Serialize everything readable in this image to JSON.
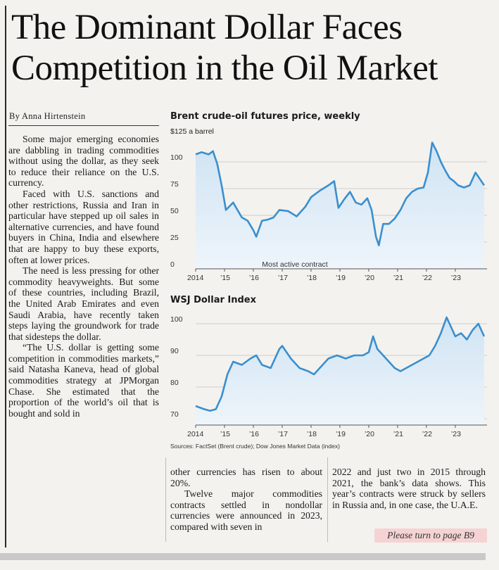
{
  "headline": {
    "line1": "The Dominant Dollar Faces",
    "line2": "Competition in the Oil Market"
  },
  "byline": "By Anna Hirtenstein",
  "body": {
    "col1": [
      "Some major emerging economies are dabbling in trading commodities without using the dollar, as they seek to reduce their reliance on the U.S. currency.",
      "Faced with U.S. sanctions and other restrictions, Russia and Iran in particular have stepped up oil sales in alternative currencies, and have found buyers in China, India and elsewhere that are happy to buy these exports, often at lower prices.",
      "The need is less pressing for other commodity heavyweights. But some of these countries, including Brazil, the United Arab Emirates and even Saudi Arabia, have recently taken steps laying the groundwork for trade that sidesteps the dollar.",
      "“The U.S. dollar is getting some competition in commodities markets,” said Natasha Kaneva, head of global commodities strategy at JPMorgan Chase. She estimated that the proportion of the world’s oil that is bought and sold in"
    ],
    "col2": [
      "other currencies has risen to about 20%.",
      "Twelve major commodities contracts settled in nondollar currencies were announced in 2023, compared with seven in"
    ],
    "col3": [
      "2022 and just two in 2015 through 2021, the bank’s data shows. This year’s contracts were struck by sellers in Russia and, in one case, the U.A.E."
    ]
  },
  "turn_page": "Please turn to page B9",
  "sources": "Sources: FactSet (Brent crude); Dow Jones Market Data (index)",
  "colors": {
    "line": "#3a8fcf",
    "fill_top": "#cfe3f3",
    "fill_bottom": "#eef5fb",
    "grid": "#cfcfcf"
  },
  "chart_data": [
    {
      "type": "area",
      "title": "Brent crude-oil futures price, weekly",
      "unit_label": "$125 a barrel",
      "annotation": "Most active contract",
      "yticks": [
        "100",
        "75",
        "50",
        "25",
        "0"
      ],
      "ytick_values": [
        100,
        75,
        50,
        25,
        0
      ],
      "xtick_labels": [
        "2014",
        "’15",
        "’16",
        "’17",
        "’18",
        "’19",
        "’20",
        "’21",
        "’22",
        "’23"
      ],
      "xtick_values": [
        2014,
        2015,
        2016,
        2017,
        2018,
        2019,
        2020,
        2021,
        2022,
        2023
      ],
      "xlim": [
        2014,
        2024.1
      ],
      "ylim": [
        0,
        125
      ],
      "x": [
        2014.0,
        2014.2,
        2014.45,
        2014.6,
        2014.75,
        2014.9,
        2015.05,
        2015.3,
        2015.45,
        2015.6,
        2015.8,
        2016.0,
        2016.1,
        2016.3,
        2016.5,
        2016.7,
        2016.9,
        2017.2,
        2017.5,
        2017.8,
        2018.0,
        2018.3,
        2018.6,
        2018.8,
        2018.95,
        2019.15,
        2019.35,
        2019.55,
        2019.75,
        2019.95,
        2020.1,
        2020.25,
        2020.35,
        2020.5,
        2020.7,
        2020.9,
        2021.1,
        2021.3,
        2021.5,
        2021.7,
        2021.9,
        2022.05,
        2022.2,
        2022.35,
        2022.5,
        2022.65,
        2022.8,
        2022.95,
        2023.1,
        2023.3,
        2023.5,
        2023.7,
        2023.85,
        2024.0
      ],
      "y": [
        107,
        109,
        107,
        110,
        98,
        78,
        55,
        62,
        55,
        48,
        45,
        36,
        30,
        45,
        46,
        48,
        55,
        54,
        49,
        58,
        67,
        73,
        78,
        82,
        57,
        65,
        72,
        62,
        60,
        66,
        55,
        30,
        22,
        42,
        42,
        47,
        55,
        66,
        72,
        75,
        76,
        90,
        118,
        110,
        100,
        92,
        85,
        82,
        78,
        76,
        78,
        90,
        84,
        78
      ]
    },
    {
      "type": "area",
      "title": "WSJ Dollar Index",
      "yticks": [
        "100",
        "90",
        "80",
        "70"
      ],
      "ytick_values": [
        100,
        90,
        80,
        70
      ],
      "xtick_labels": [
        "2014",
        "’15",
        "’16",
        "’17",
        "’18",
        "’19",
        "’20",
        "’21",
        "’22",
        "’23"
      ],
      "xtick_values": [
        2014,
        2015,
        2016,
        2017,
        2018,
        2019,
        2020,
        2021,
        2022,
        2023
      ],
      "xlim": [
        2014,
        2024.1
      ],
      "ylim": [
        68,
        104
      ],
      "x": [
        2014.0,
        2014.3,
        2014.5,
        2014.7,
        2014.9,
        2015.1,
        2015.3,
        2015.6,
        2015.9,
        2016.1,
        2016.3,
        2016.6,
        2016.9,
        2017.0,
        2017.3,
        2017.6,
        2017.9,
        2018.1,
        2018.3,
        2018.6,
        2018.9,
        2019.2,
        2019.5,
        2019.8,
        2020.0,
        2020.15,
        2020.3,
        2020.5,
        2020.7,
        2020.9,
        2021.1,
        2021.3,
        2021.5,
        2021.7,
        2021.9,
        2022.1,
        2022.3,
        2022.5,
        2022.7,
        2022.85,
        2023.0,
        2023.2,
        2023.4,
        2023.6,
        2023.8,
        2024.0
      ],
      "y": [
        74,
        73,
        72.5,
        73,
        77,
        84,
        88,
        87,
        89,
        90,
        87,
        86,
        92,
        93,
        89,
        86,
        85,
        84,
        86,
        89,
        90,
        89,
        90,
        90,
        91,
        96,
        92,
        90,
        88,
        86,
        85,
        86,
        87,
        88,
        89,
        90,
        93,
        97,
        102,
        99,
        96,
        97,
        95,
        98,
        100,
        96
      ]
    }
  ]
}
